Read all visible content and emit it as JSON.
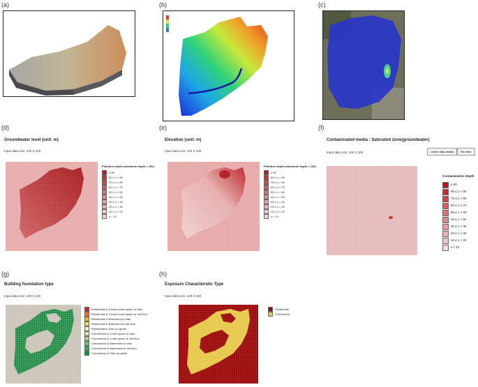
{
  "panel_labels": {
    "a": "(a)",
    "b": "(b)",
    "c": "(c)",
    "d": "(d)",
    "e": "(e)",
    "f": "(f)",
    "g": "(g)",
    "h": "(h)"
  },
  "panel_d": {
    "title": "Groundwater level (unit: m)",
    "input_label": "Input data size: 100  X 100",
    "legend_title": "Pollution depth (maximum depth = 100)",
    "legend": [
      "≥ 90",
      "80 ≤ x < 90",
      "70 ≤ x < 80",
      "60 ≤ x < 70",
      "50 ≤ x < 60",
      "40 ≤ x < 50",
      "30 ≤ x < 40",
      "20 ≤ x < 30",
      "10 ≤ x < 20",
      "x < 10"
    ]
  },
  "panel_e": {
    "title": "Elevation (unit: m)",
    "input_label": "Input data size: 100  X 100",
    "legend_title": "Pollution depth (maximum depth = 100)",
    "legend": [
      "≥ 90",
      "80 ≤ x < 90",
      "70 ≤ x < 80",
      "60 ≤ x < 70",
      "50 ≤ x < 60",
      "40 ≤ x < 50",
      "30 ≤ x < 40",
      "20 ≤ x < 30",
      "10 ≤ x < 20",
      "x < 10"
    ]
  },
  "panel_f": {
    "title": "Contaminated media : Saturated zone(groundwater)",
    "input_label": "Input data size: 100 X 100",
    "check_button": "Check data details",
    "reenter_button": "Re-enter",
    "legend_title": "Contamination Depth",
    "legend": [
      "≥ 90",
      "80 ≤ x < 90",
      "70 ≤ x < 80",
      "60 ≤ x < 70",
      "50 ≤ x < 60",
      "40 ≤ x < 50",
      "30 ≤ x < 40",
      "20 ≤ x < 30",
      "10 ≤ x < 20",
      "x < 10"
    ]
  },
  "panel_g": {
    "title": "Building foundation type",
    "input_label": "Input data size: 100  X 100",
    "legend": [
      {
        "label": "Residential & Closed crawl space w/ slab",
        "color": "#c0282d"
      },
      {
        "label": "Residential & Closed crawl space w/ dirt floor",
        "color": "#e2752f"
      },
      {
        "label": "Residential & Basement w/ slab",
        "color": "#e8b23c"
      },
      {
        "label": "Residential & Basement w/ dirt floor",
        "color": "#f0dc6a"
      },
      {
        "label": "Residential & Slab-on-grade",
        "color": "#f5f0c8"
      },
      {
        "label": "Commercial & Crawl space w/ slab",
        "color": "#d9e8b0"
      },
      {
        "label": "Commercial & Crawl space w/ dirt floor",
        "color": "#a8d08d"
      },
      {
        "label": "Commercial & Basement w/ slab",
        "color": "#6fbf73"
      },
      {
        "label": "Commercial & Basement w/ dirt floor",
        "color": "#3fa257"
      },
      {
        "label": "Commercial & Slab-on-grade",
        "color": "#1e8a44"
      }
    ]
  },
  "panel_h": {
    "title": "Exposure Characteristic Type",
    "input_label": "Input data size: 100  X 100",
    "legend": [
      {
        "label": "Residential",
        "color": "#9c0a0a"
      },
      {
        "label": "Commercial",
        "color": "#e6c84a"
      }
    ]
  },
  "colors": {
    "pollution_scale": [
      "#c0141c",
      "#cc2a2e",
      "#d54446",
      "#dc5a5a",
      "#e27070",
      "#e78686",
      "#eb9c9c",
      "#efb0b0",
      "#f3c4c4",
      "#f7d8d8"
    ],
    "blue_site": "#2a36c8",
    "green_dominant": "#1e8a44",
    "red_dominant": "#9c0a0a",
    "grid_gray": "#c9c2b6"
  }
}
